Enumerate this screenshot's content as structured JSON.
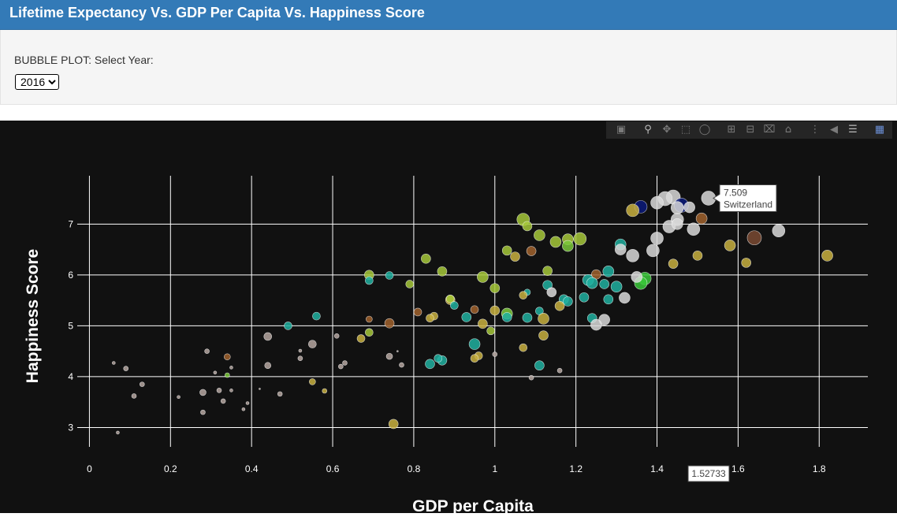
{
  "header": {
    "title": "Lifetime Expectancy Vs. GDP Per Capita Vs. Happiness Score"
  },
  "controls": {
    "label": "BUBBLE PLOT: Select Year:",
    "selected_year": "2016"
  },
  "modebar": {
    "icons": [
      "camera-icon",
      "zoom-icon",
      "pan-icon",
      "box-select-icon",
      "lasso-select-icon",
      "zoom-in-icon",
      "zoom-out-icon",
      "autoscale-icon",
      "reset-axes-icon",
      "spike-lines-icon",
      "hover-closest-icon",
      "hover-compare-icon",
      "plotly-logo-icon"
    ]
  },
  "chart_data": {
    "type": "scatter",
    "xlabel": "GDP per Capita",
    "ylabel": "Happiness Score",
    "xlim": [
      -0.03,
      1.92
    ],
    "ylim": [
      2.62,
      7.95
    ],
    "xticks": [
      0,
      0.2,
      0.4,
      0.6,
      0.8,
      1,
      1.2,
      1.4,
      1.6,
      1.8
    ],
    "xtick_labels": [
      "0",
      "0.2",
      "0.4",
      "0.6",
      "0.8",
      "1",
      "1.2",
      "1.4",
      "1.6",
      "1.8"
    ],
    "yticks": [
      3,
      4,
      5,
      6,
      7
    ],
    "ytick_labels": [
      "3",
      "4",
      "5",
      "6",
      "7"
    ],
    "grid": true,
    "background": "#111111",
    "hover": {
      "x_label": "1.52733",
      "y_label": "7.509",
      "country": "Switzerland",
      "x": 1.52733,
      "y": 7.509
    },
    "points": [
      {
        "x": 1.527,
        "y": 7.509,
        "s": 9,
        "c": "#d9d9d9"
      },
      {
        "x": 1.44,
        "y": 7.53,
        "s": 9,
        "c": "#d9d9d9"
      },
      {
        "x": 1.42,
        "y": 7.5,
        "s": 9,
        "c": "#d9d9d9"
      },
      {
        "x": 1.4,
        "y": 7.42,
        "s": 8,
        "c": "#d9d9d9"
      },
      {
        "x": 1.46,
        "y": 7.37,
        "s": 9,
        "c": "#0a1a7a"
      },
      {
        "x": 1.36,
        "y": 7.34,
        "s": 8,
        "c": "#0a1a7a"
      },
      {
        "x": 1.45,
        "y": 7.32,
        "s": 8,
        "c": "#d9d9d9"
      },
      {
        "x": 1.48,
        "y": 7.33,
        "s": 7,
        "c": "#d9d9d9"
      },
      {
        "x": 1.34,
        "y": 7.27,
        "s": 8,
        "c": "#c8b040"
      },
      {
        "x": 1.45,
        "y": 7.09,
        "s": 8,
        "c": "#d9d9d9"
      },
      {
        "x": 1.51,
        "y": 7.11,
        "s": 7,
        "c": "#a0622d"
      },
      {
        "x": 1.43,
        "y": 6.95,
        "s": 8,
        "c": "#d9d9d9"
      },
      {
        "x": 1.49,
        "y": 6.9,
        "s": 8,
        "c": "#d9d9d9"
      },
      {
        "x": 1.7,
        "y": 6.87,
        "s": 8,
        "c": "#d9d9d9"
      },
      {
        "x": 1.45,
        "y": 7.0,
        "s": 7,
        "c": "#d9d9d9"
      },
      {
        "x": 1.4,
        "y": 6.72,
        "s": 8,
        "c": "#d9d9d9"
      },
      {
        "x": 1.64,
        "y": 6.73,
        "s": 9,
        "c": "#7a4a32"
      },
      {
        "x": 1.31,
        "y": 6.6,
        "s": 7,
        "c": "#20b0a0"
      },
      {
        "x": 1.31,
        "y": 6.5,
        "s": 7,
        "c": "#d9d9d9"
      },
      {
        "x": 1.39,
        "y": 6.48,
        "s": 8,
        "c": "#d9d9d9"
      },
      {
        "x": 1.34,
        "y": 6.38,
        "s": 8,
        "c": "#d9d9d9"
      },
      {
        "x": 1.58,
        "y": 6.58,
        "s": 7,
        "c": "#c8b040"
      },
      {
        "x": 1.82,
        "y": 6.38,
        "s": 7,
        "c": "#c8b040"
      },
      {
        "x": 1.5,
        "y": 6.38,
        "s": 6,
        "c": "#c8b040"
      },
      {
        "x": 1.62,
        "y": 6.24,
        "s": 6,
        "c": "#c8b040"
      },
      {
        "x": 1.44,
        "y": 6.22,
        "s": 6,
        "c": "#c8b040"
      },
      {
        "x": 1.07,
        "y": 7.09,
        "s": 8,
        "c": "#a6c83a"
      },
      {
        "x": 1.08,
        "y": 6.96,
        "s": 6,
        "c": "#a6c83a"
      },
      {
        "x": 1.11,
        "y": 6.78,
        "s": 7,
        "c": "#a6c83a"
      },
      {
        "x": 1.15,
        "y": 6.65,
        "s": 7,
        "c": "#a6c83a"
      },
      {
        "x": 1.18,
        "y": 6.7,
        "s": 7,
        "c": "#a6c83a"
      },
      {
        "x": 1.21,
        "y": 6.71,
        "s": 8,
        "c": "#a6c83a"
      },
      {
        "x": 1.18,
        "y": 6.57,
        "s": 7,
        "c": "#7ac83a"
      },
      {
        "x": 1.03,
        "y": 6.48,
        "s": 6,
        "c": "#a6c83a"
      },
      {
        "x": 1.09,
        "y": 6.47,
        "s": 6,
        "c": "#a0622d"
      },
      {
        "x": 1.05,
        "y": 6.36,
        "s": 6,
        "c": "#c8b040"
      },
      {
        "x": 0.83,
        "y": 6.32,
        "s": 6,
        "c": "#a6c83a"
      },
      {
        "x": 1.13,
        "y": 6.08,
        "s": 6,
        "c": "#a6c83a"
      },
      {
        "x": 1.28,
        "y": 6.07,
        "s": 7,
        "c": "#20b0a0"
      },
      {
        "x": 1.25,
        "y": 6.01,
        "s": 6,
        "c": "#a0622d"
      },
      {
        "x": 0.87,
        "y": 6.07,
        "s": 6,
        "c": "#a6c83a"
      },
      {
        "x": 0.69,
        "y": 6.0,
        "s": 6,
        "c": "#a6c83a"
      },
      {
        "x": 0.97,
        "y": 5.96,
        "s": 7,
        "c": "#a6c83a"
      },
      {
        "x": 1.37,
        "y": 5.93,
        "s": 8,
        "c": "#3ac83a"
      },
      {
        "x": 1.36,
        "y": 5.84,
        "s": 8,
        "c": "#3ac83a"
      },
      {
        "x": 1.35,
        "y": 5.96,
        "s": 7,
        "c": "#d9d9d9"
      },
      {
        "x": 1.23,
        "y": 5.9,
        "s": 7,
        "c": "#20b0a0"
      },
      {
        "x": 1.24,
        "y": 5.84,
        "s": 7,
        "c": "#20b0a0"
      },
      {
        "x": 1.27,
        "y": 5.82,
        "s": 6,
        "c": "#20b0a0"
      },
      {
        "x": 1.3,
        "y": 5.77,
        "s": 7,
        "c": "#20b0a0"
      },
      {
        "x": 0.69,
        "y": 5.89,
        "s": 5,
        "c": "#20b0a0"
      },
      {
        "x": 0.74,
        "y": 5.99,
        "s": 5,
        "c": "#20b0a0"
      },
      {
        "x": 0.79,
        "y": 5.82,
        "s": 5,
        "c": "#a6c83a"
      },
      {
        "x": 1.0,
        "y": 5.74,
        "s": 6,
        "c": "#a6c83a"
      },
      {
        "x": 1.13,
        "y": 5.8,
        "s": 6,
        "c": "#20b0a0"
      },
      {
        "x": 1.14,
        "y": 5.66,
        "s": 6,
        "c": "#d9d9d9"
      },
      {
        "x": 1.08,
        "y": 5.66,
        "s": 4,
        "c": "#20b0a0"
      },
      {
        "x": 1.07,
        "y": 5.6,
        "s": 5,
        "c": "#c8b040"
      },
      {
        "x": 1.32,
        "y": 5.55,
        "s": 7,
        "c": "#d9d9d9"
      },
      {
        "x": 1.22,
        "y": 5.56,
        "s": 6,
        "c": "#20b0a0"
      },
      {
        "x": 1.28,
        "y": 5.52,
        "s": 6,
        "c": "#20b0a0"
      },
      {
        "x": 1.17,
        "y": 5.52,
        "s": 6,
        "c": "#20b0a0"
      },
      {
        "x": 1.18,
        "y": 5.48,
        "s": 6,
        "c": "#20b0a0"
      },
      {
        "x": 1.16,
        "y": 5.39,
        "s": 6,
        "c": "#c8b040"
      },
      {
        "x": 0.89,
        "y": 5.51,
        "s": 6,
        "c": "#c8b040"
      },
      {
        "x": 0.89,
        "y": 5.53,
        "s": 5,
        "c": "#a6c83a"
      },
      {
        "x": 0.9,
        "y": 5.4,
        "s": 5,
        "c": "#20b0a0"
      },
      {
        "x": 1.0,
        "y": 5.3,
        "s": 6,
        "c": "#c8b040"
      },
      {
        "x": 0.95,
        "y": 5.32,
        "s": 5,
        "c": "#a0622d"
      },
      {
        "x": 0.81,
        "y": 5.27,
        "s": 5,
        "c": "#a0622d"
      },
      {
        "x": 1.03,
        "y": 5.24,
        "s": 7,
        "c": "#7ac83a"
      },
      {
        "x": 1.11,
        "y": 5.29,
        "s": 5,
        "c": "#20b0a0"
      },
      {
        "x": 1.03,
        "y": 5.17,
        "s": 6,
        "c": "#20b0a0"
      },
      {
        "x": 1.12,
        "y": 5.14,
        "s": 7,
        "c": "#c8b040"
      },
      {
        "x": 1.08,
        "y": 5.16,
        "s": 6,
        "c": "#20b0a0"
      },
      {
        "x": 0.93,
        "y": 5.17,
        "s": 6,
        "c": "#20b0a0"
      },
      {
        "x": 0.85,
        "y": 5.19,
        "s": 5,
        "c": "#c8b040"
      },
      {
        "x": 0.84,
        "y": 5.15,
        "s": 5,
        "c": "#c8b040"
      },
      {
        "x": 1.24,
        "y": 5.15,
        "s": 6,
        "c": "#20b0a0"
      },
      {
        "x": 1.27,
        "y": 5.12,
        "s": 7,
        "c": "#d9d9d9"
      },
      {
        "x": 1.25,
        "y": 5.02,
        "s": 7,
        "c": "#d9d9d9"
      },
      {
        "x": 0.97,
        "y": 5.04,
        "s": 6,
        "c": "#c8b040"
      },
      {
        "x": 0.74,
        "y": 5.05,
        "s": 6,
        "c": "#a0622d"
      },
      {
        "x": 0.56,
        "y": 5.19,
        "s": 5,
        "c": "#20b0a0"
      },
      {
        "x": 0.49,
        "y": 5.0,
        "s": 5,
        "c": "#20b0a0"
      },
      {
        "x": 0.69,
        "y": 5.13,
        "s": 4,
        "c": "#a0622d"
      },
      {
        "x": 0.99,
        "y": 4.9,
        "s": 5,
        "c": "#a6c83a"
      },
      {
        "x": 0.69,
        "y": 4.87,
        "s": 5,
        "c": "#a6c83a"
      },
      {
        "x": 1.12,
        "y": 4.81,
        "s": 6,
        "c": "#c8b040"
      },
      {
        "x": 0.67,
        "y": 4.75,
        "s": 5,
        "c": "#c8b040"
      },
      {
        "x": 0.44,
        "y": 4.79,
        "s": 5,
        "c": "#b5a6a0"
      },
      {
        "x": 0.95,
        "y": 4.64,
        "s": 7,
        "c": "#20b0a0"
      },
      {
        "x": 0.55,
        "y": 4.64,
        "s": 5,
        "c": "#b5a6a0"
      },
      {
        "x": 1.07,
        "y": 4.57,
        "s": 5,
        "c": "#c8b040"
      },
      {
        "x": 0.52,
        "y": 4.51,
        "s": 2,
        "c": "#b5a6a0"
      },
      {
        "x": 0.61,
        "y": 4.8,
        "s": 3,
        "c": "#b5a6a0"
      },
      {
        "x": 1.0,
        "y": 4.44,
        "s": 3,
        "c": "#b5a6a0"
      },
      {
        "x": 0.96,
        "y": 4.41,
        "s": 5,
        "c": "#c8b040"
      },
      {
        "x": 0.74,
        "y": 4.4,
        "s": 4,
        "c": "#b5a6a0"
      },
      {
        "x": 0.87,
        "y": 4.32,
        "s": 6,
        "c": "#20b0a0"
      },
      {
        "x": 0.86,
        "y": 4.36,
        "s": 5,
        "c": "#20b0a0"
      },
      {
        "x": 0.84,
        "y": 4.25,
        "s": 6,
        "c": "#20b0a0"
      },
      {
        "x": 0.95,
        "y": 4.36,
        "s": 5,
        "c": "#c8b040"
      },
      {
        "x": 0.77,
        "y": 4.23,
        "s": 3,
        "c": "#b5a6a0"
      },
      {
        "x": 0.63,
        "y": 4.27,
        "s": 3,
        "c": "#b5a6a0"
      },
      {
        "x": 0.62,
        "y": 4.2,
        "s": 3,
        "c": "#b5a6a0"
      },
      {
        "x": 0.44,
        "y": 4.22,
        "s": 4,
        "c": "#b5a6a0"
      },
      {
        "x": 0.52,
        "y": 4.36,
        "s": 3,
        "c": "#b5a6a0"
      },
      {
        "x": 1.11,
        "y": 4.22,
        "s": 6,
        "c": "#20b0a0"
      },
      {
        "x": 1.16,
        "y": 4.12,
        "s": 3,
        "c": "#b5a6a0"
      },
      {
        "x": 1.09,
        "y": 3.98,
        "s": 3,
        "c": "#b5a6a0"
      },
      {
        "x": 0.76,
        "y": 4.5,
        "s": 1,
        "c": "#b5a6a0"
      },
      {
        "x": 0.34,
        "y": 4.39,
        "s": 4,
        "c": "#a0622d"
      },
      {
        "x": 0.35,
        "y": 4.18,
        "s": 2,
        "c": "#b5a6a0"
      },
      {
        "x": 0.29,
        "y": 4.5,
        "s": 3,
        "c": "#b5a6a0"
      },
      {
        "x": 0.31,
        "y": 4.08,
        "s": 2,
        "c": "#b5a6a0"
      },
      {
        "x": 0.34,
        "y": 4.03,
        "s": 3,
        "c": "#7ac83a"
      },
      {
        "x": 0.06,
        "y": 4.27,
        "s": 2,
        "c": "#b5a6a0"
      },
      {
        "x": 0.09,
        "y": 4.16,
        "s": 3,
        "c": "#b5a6a0"
      },
      {
        "x": 0.13,
        "y": 3.85,
        "s": 3,
        "c": "#b5a6a0"
      },
      {
        "x": 0.11,
        "y": 3.62,
        "s": 3,
        "c": "#b5a6a0"
      },
      {
        "x": 0.22,
        "y": 3.6,
        "s": 2,
        "c": "#b5a6a0"
      },
      {
        "x": 0.28,
        "y": 3.69,
        "s": 4,
        "c": "#b5a6a0"
      },
      {
        "x": 0.32,
        "y": 3.73,
        "s": 3,
        "c": "#b5a6a0"
      },
      {
        "x": 0.35,
        "y": 3.73,
        "s": 2,
        "c": "#b5a6a0"
      },
      {
        "x": 0.33,
        "y": 3.52,
        "s": 3,
        "c": "#b5a6a0"
      },
      {
        "x": 0.28,
        "y": 3.3,
        "s": 3,
        "c": "#b5a6a0"
      },
      {
        "x": 0.39,
        "y": 3.48,
        "s": 2,
        "c": "#b5a6a0"
      },
      {
        "x": 0.38,
        "y": 3.36,
        "s": 2,
        "c": "#b5a6a0"
      },
      {
        "x": 0.42,
        "y": 3.76,
        "s": 1,
        "c": "#b5a6a0"
      },
      {
        "x": 0.47,
        "y": 3.66,
        "s": 3,
        "c": "#b5a6a0"
      },
      {
        "x": 0.55,
        "y": 3.9,
        "s": 4,
        "c": "#c8b040"
      },
      {
        "x": 0.58,
        "y": 3.72,
        "s": 3,
        "c": "#c8b040"
      },
      {
        "x": 0.07,
        "y": 2.9,
        "s": 2,
        "c": "#b5a6a0"
      },
      {
        "x": 0.75,
        "y": 3.07,
        "s": 6,
        "c": "#c8b040"
      }
    ]
  }
}
